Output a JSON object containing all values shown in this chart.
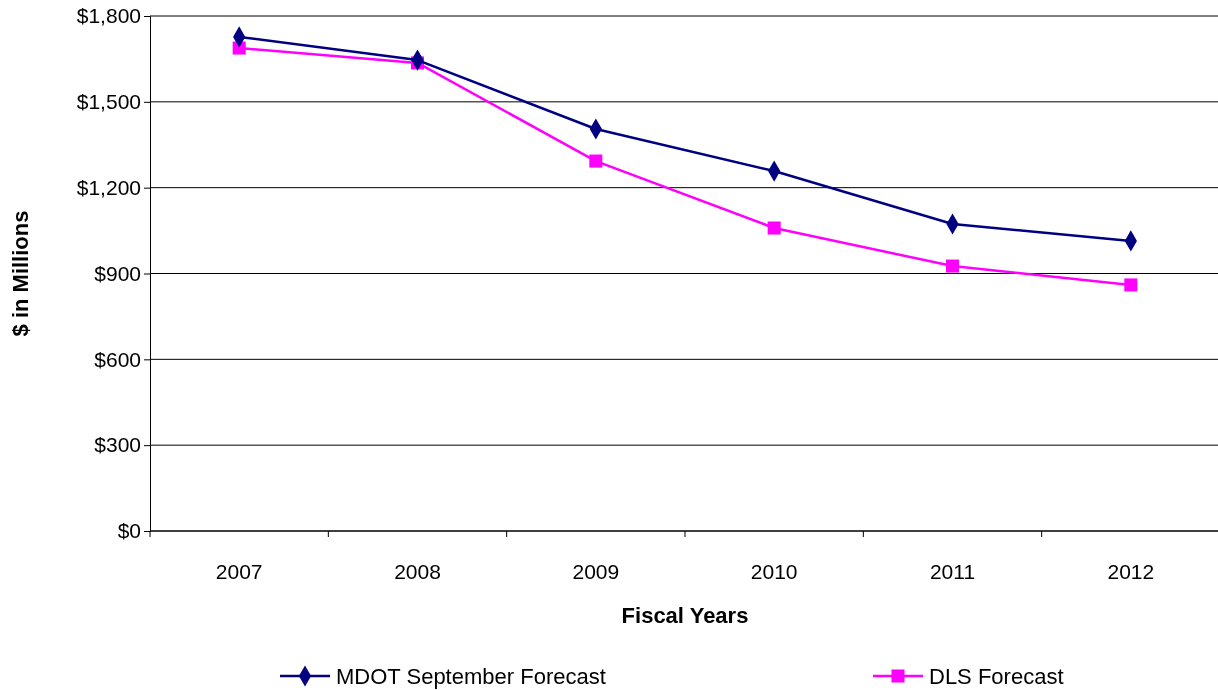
{
  "chart_data": {
    "type": "line",
    "xlabel": "Fiscal Years",
    "ylabel": "$ in Millions",
    "categories": [
      "2007",
      "2008",
      "2009",
      "2010",
      "2011",
      "2012"
    ],
    "series": [
      {
        "name": "MDOT September Forecast",
        "color": "#000080",
        "marker": "diamond",
        "values": [
          1727,
          1646,
          1405,
          1258,
          1073,
          1014
        ]
      },
      {
        "name": "DLS Forecast",
        "color": "#ff00ff",
        "marker": "square",
        "values": [
          1688,
          1636,
          1293,
          1059,
          926,
          860
        ]
      }
    ],
    "ylim": [
      0,
      1800
    ],
    "yticks": [
      {
        "value": 0,
        "label": "$0"
      },
      {
        "value": 300,
        "label": "$300"
      },
      {
        "value": 600,
        "label": "$600"
      },
      {
        "value": 900,
        "label": "$900"
      },
      {
        "value": 1200,
        "label": "$1,200"
      },
      {
        "value": 1500,
        "label": "$1,500"
      },
      {
        "value": 1800,
        "label": "$1,800"
      }
    ],
    "grid": "y",
    "legend": "bottom"
  }
}
